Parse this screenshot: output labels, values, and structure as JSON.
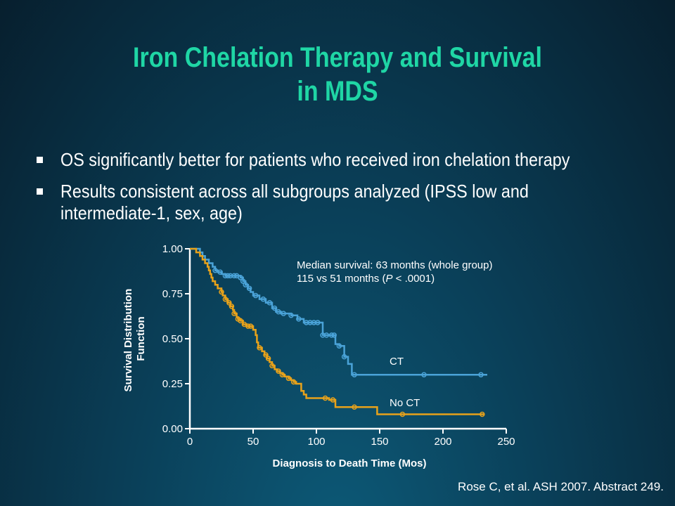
{
  "slide": {
    "title_line1": "Iron Chelation Therapy and Survival",
    "title_line2": "in MDS",
    "bullets": [
      "OS significantly better for patients who received iron chelation therapy",
      "Results consistent across all subgroups analyzed (IPSS low and intermediate-1, sex, age)"
    ],
    "citation": "Rose C, et al. ASH 2007. Abstract 249.",
    "colors": {
      "title": "#1fd6a5",
      "ct": "#4aa3d8",
      "no_ct": "#e8a21a"
    }
  },
  "chart_data": {
    "type": "line",
    "step": true,
    "xlabel": "Diagnosis to Death Time (Mos)",
    "ylabel": "Survival Distribution Function",
    "xlim": [
      0,
      250
    ],
    "ylim": [
      0,
      1
    ],
    "x_ticks": [
      "0",
      "50",
      "100",
      "150",
      "200",
      "250"
    ],
    "y_ticks": [
      "0.00",
      "0.25",
      "0.50",
      "0.75",
      "1.00"
    ],
    "annotation_line1": "Median survival: 63 months (whole group)",
    "annotation_line2_a": "115 vs 51 months (",
    "annotation_line2_p": "P",
    "annotation_line2_b": " < .0001)",
    "series": [
      {
        "name": "CT",
        "points": [
          [
            0,
            1.0
          ],
          [
            5,
            1.0
          ],
          [
            8,
            0.98
          ],
          [
            10,
            0.96
          ],
          [
            12,
            0.94
          ],
          [
            15,
            0.92
          ],
          [
            18,
            0.9
          ],
          [
            20,
            0.88
          ],
          [
            22,
            0.87
          ],
          [
            25,
            0.86
          ],
          [
            28,
            0.85
          ],
          [
            35,
            0.85
          ],
          [
            40,
            0.84
          ],
          [
            42,
            0.82
          ],
          [
            44,
            0.8
          ],
          [
            46,
            0.78
          ],
          [
            48,
            0.76
          ],
          [
            50,
            0.74
          ],
          [
            55,
            0.72
          ],
          [
            60,
            0.7
          ],
          [
            65,
            0.67
          ],
          [
            68,
            0.65
          ],
          [
            72,
            0.64
          ],
          [
            80,
            0.63
          ],
          [
            85,
            0.61
          ],
          [
            90,
            0.59
          ],
          [
            103,
            0.59
          ],
          [
            105,
            0.52
          ],
          [
            112,
            0.52
          ],
          [
            115,
            0.47
          ],
          [
            118,
            0.46
          ],
          [
            122,
            0.4
          ],
          [
            125,
            0.36
          ],
          [
            128,
            0.3
          ],
          [
            235,
            0.3
          ]
        ],
        "censor_x": [
          20,
          24,
          28,
          30,
          32,
          35,
          37,
          40,
          42,
          44,
          47,
          52,
          58,
          63,
          67,
          70,
          74,
          80,
          86,
          92,
          95,
          98,
          101,
          105,
          108,
          112,
          114,
          118,
          122,
          130,
          185,
          230
        ]
      },
      {
        "name": "No CT",
        "points": [
          [
            0,
            1.0
          ],
          [
            5,
            0.98
          ],
          [
            8,
            0.96
          ],
          [
            10,
            0.94
          ],
          [
            12,
            0.92
          ],
          [
            14,
            0.9
          ],
          [
            15,
            0.88
          ],
          [
            16,
            0.86
          ],
          [
            17,
            0.84
          ],
          [
            18,
            0.82
          ],
          [
            20,
            0.8
          ],
          [
            22,
            0.78
          ],
          [
            25,
            0.76
          ],
          [
            26,
            0.74
          ],
          [
            28,
            0.72
          ],
          [
            30,
            0.7
          ],
          [
            32,
            0.68
          ],
          [
            34,
            0.66
          ],
          [
            35,
            0.64
          ],
          [
            37,
            0.62
          ],
          [
            38,
            0.61
          ],
          [
            40,
            0.6
          ],
          [
            42,
            0.58
          ],
          [
            45,
            0.57
          ],
          [
            50,
            0.55
          ],
          [
            52,
            0.52
          ],
          [
            53,
            0.48
          ],
          [
            54,
            0.45
          ],
          [
            57,
            0.43
          ],
          [
            59,
            0.41
          ],
          [
            61,
            0.39
          ],
          [
            63,
            0.37
          ],
          [
            65,
            0.35
          ],
          [
            67,
            0.33
          ],
          [
            69,
            0.32
          ],
          [
            71,
            0.31
          ],
          [
            73,
            0.3
          ],
          [
            75,
            0.29
          ],
          [
            78,
            0.28
          ],
          [
            80,
            0.27
          ],
          [
            82,
            0.26
          ],
          [
            84,
            0.25
          ],
          [
            88,
            0.21
          ],
          [
            90,
            0.19
          ],
          [
            92,
            0.17
          ],
          [
            100,
            0.17
          ],
          [
            110,
            0.16
          ],
          [
            115,
            0.12
          ],
          [
            145,
            0.12
          ],
          [
            148,
            0.08
          ],
          [
            233,
            0.08
          ]
        ],
        "censor_x": [
          25,
          28,
          31,
          33,
          35,
          38,
          40,
          43,
          46,
          48,
          55,
          60,
          62,
          65,
          70,
          73,
          78,
          82,
          107,
          113,
          130,
          168,
          231
        ]
      }
    ]
  }
}
